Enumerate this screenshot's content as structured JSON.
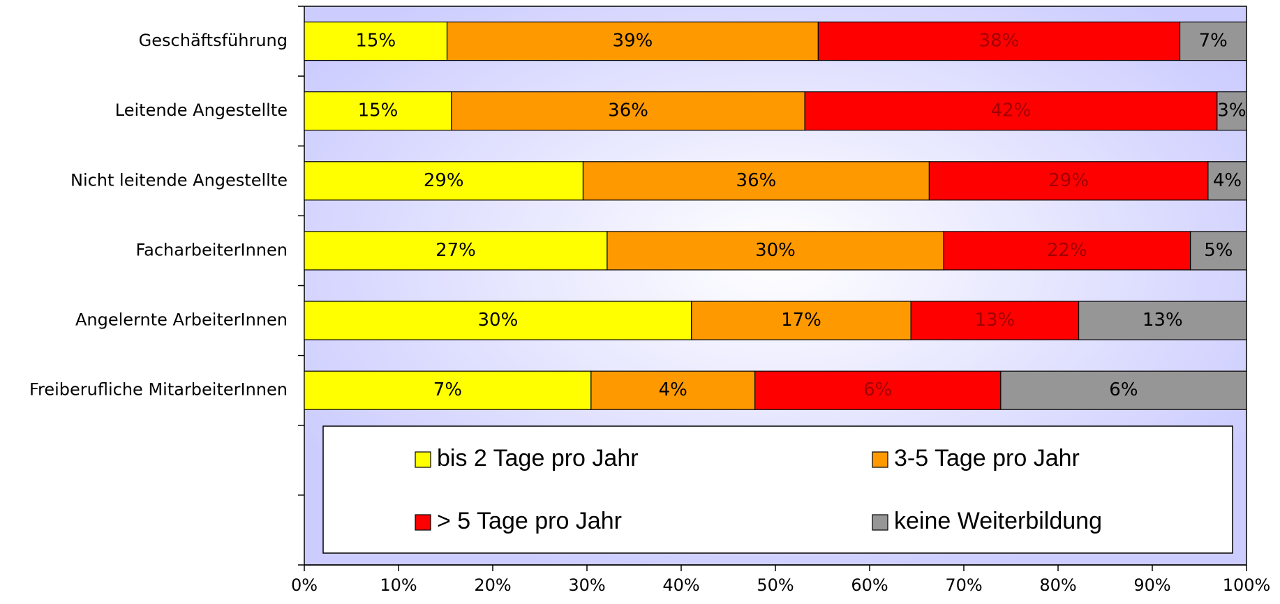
{
  "chart_data": {
    "type": "bar",
    "orientation": "horizontal",
    "stack": "percent",
    "categories": [
      "Geschäftsführung",
      "Leitende Angestellte",
      "Nicht leitende Angestellte",
      "FacharbeiterInnen",
      "Angelernte ArbeiterInnen",
      "Freiberufliche MitarbeiterInnen"
    ],
    "series": [
      {
        "name": "bis 2 Tage pro Jahr",
        "color": "#ffff00",
        "values": [
          15,
          15,
          29,
          27,
          30,
          7
        ],
        "value_labels": [
          "15%",
          "15%",
          "29%",
          "27%",
          "30%",
          "7%"
        ]
      },
      {
        "name": "3-5 Tage pro Jahr",
        "color": "#ff9900",
        "values": [
          39,
          36,
          36,
          30,
          17,
          4
        ],
        "value_labels": [
          "39%",
          "36%",
          "36%",
          "30%",
          "17%",
          "4%"
        ]
      },
      {
        "name": "> 5 Tage pro Jahr",
        "color": "#ff0000",
        "values": [
          38,
          42,
          29,
          22,
          13,
          6
        ],
        "value_labels": [
          "38%",
          "42%",
          "29%",
          "22%",
          "13%",
          "6%"
        ]
      },
      {
        "name": "keine Weiterbildung",
        "color": "#969696",
        "values": [
          7,
          3,
          4,
          5,
          13,
          6
        ],
        "value_labels": [
          "7%",
          "3%",
          "4%",
          "5%",
          "13%",
          "6%"
        ]
      }
    ],
    "xlim": [
      0,
      100
    ],
    "xticks": [
      {
        "value": 0,
        "label": "0%"
      },
      {
        "value": 10,
        "label": "10%"
      },
      {
        "value": 20,
        "label": "20%"
      },
      {
        "value": 30,
        "label": "30%"
      },
      {
        "value": 40,
        "label": "40%"
      },
      {
        "value": 50,
        "label": "50%"
      },
      {
        "value": 60,
        "label": "60%"
      },
      {
        "value": 70,
        "label": "70%"
      },
      {
        "value": 80,
        "label": "80%"
      },
      {
        "value": 90,
        "label": "90%"
      },
      {
        "value": 100,
        "label": "100%"
      }
    ]
  }
}
